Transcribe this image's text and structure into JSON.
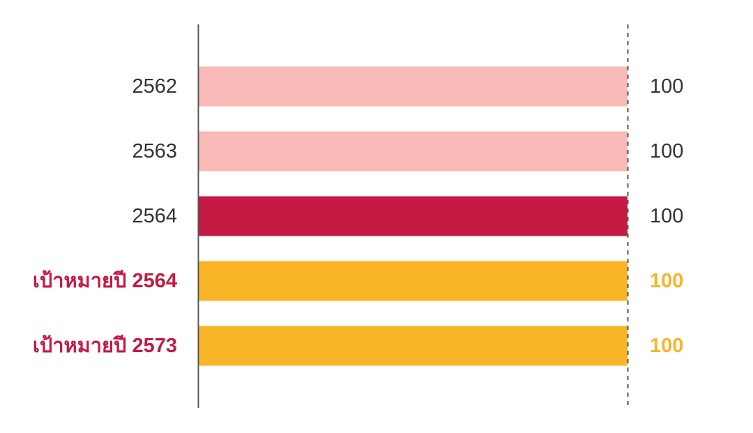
{
  "chart_data": {
    "type": "bar",
    "orientation": "horizontal",
    "categories": [
      "2562",
      "2563",
      "2564",
      "เป้าหมายปี 2564",
      "เป้าหมายปี 2573"
    ],
    "values": [
      100,
      100,
      100,
      100,
      100
    ],
    "value_labels": [
      "100",
      "100",
      "100",
      "100",
      "100"
    ],
    "xlim": [
      0,
      100
    ],
    "reference_line": {
      "value": 100,
      "style": "dashed"
    },
    "grid": false,
    "legend": "none",
    "bar_colors": [
      "#f7bab6",
      "#f7bab6",
      "#c41a43",
      "#f9b526",
      "#f9b526"
    ],
    "category_label_colors": [
      "#333333",
      "#333333",
      "#333333",
      "#c41a43",
      "#c41a43"
    ],
    "category_label_bold": [
      false,
      false,
      false,
      true,
      true
    ],
    "value_label_colors": [
      "#333333",
      "#333333",
      "#333333",
      "#f9b526",
      "#f9b526"
    ],
    "value_label_bold": [
      false,
      false,
      false,
      true,
      true
    ]
  }
}
